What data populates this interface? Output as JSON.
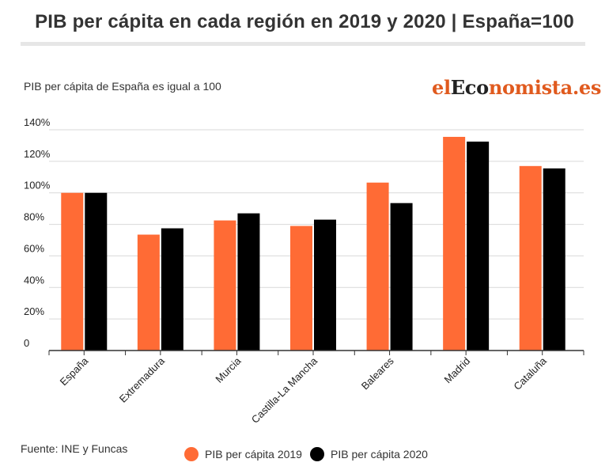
{
  "header": {
    "title": "PIB per cápita en cada región en 2019 y 2020 | España=100",
    "subtitle": "PIB per cápita de España es igual a 100"
  },
  "logo": {
    "part1": "el",
    "part2": "Eco",
    "part3": "nomista.es"
  },
  "footer": {
    "source": "Fuente: INE y Funcas"
  },
  "colors": {
    "series2019": "#ff6b35",
    "series2020": "#000000"
  },
  "chart_data": {
    "type": "bar",
    "title": "PIB per cápita en cada región en 2019 y 2020 | España=100",
    "ylabel": "PIB per cápita de España es igual a 100",
    "xlabel": "",
    "categories": [
      "España",
      "Extremadura",
      "Murcia",
      "Castilla-La Mancha",
      "Baleares",
      "Madrid",
      "Cataluña"
    ],
    "series": [
      {
        "name": "PIB per cápita 2019",
        "values": [
          100,
          73.5,
          82.5,
          79,
          106.5,
          135.5,
          117
        ]
      },
      {
        "name": "PIB per cápita 2020",
        "values": [
          100,
          77.5,
          87,
          83,
          93.5,
          132.5,
          115.5
        ]
      }
    ],
    "ylim": [
      0,
      140
    ],
    "yticks": [
      0,
      20,
      40,
      60,
      80,
      100,
      120,
      140
    ],
    "ytick_labels": [
      "0",
      "20%",
      "40%",
      "60%",
      "80%",
      "100%",
      "120%",
      "140%"
    ],
    "grid": true,
    "legend_position": "bottom"
  }
}
